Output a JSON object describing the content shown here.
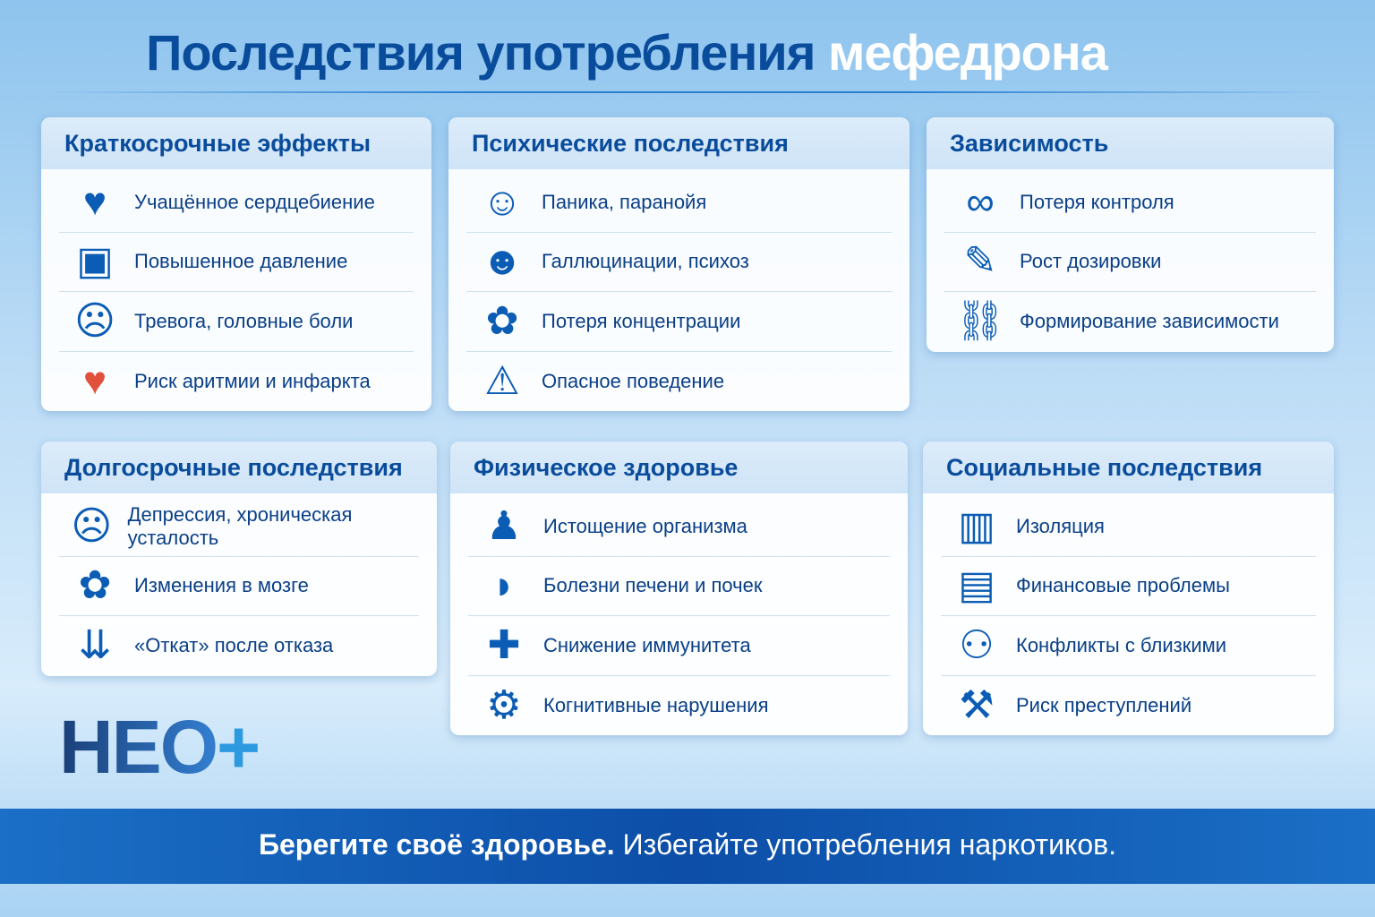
{
  "title": {
    "main": "Последствия употребления",
    "highlight": "мефедрона"
  },
  "cards": [
    {
      "title": "Краткосрочные эффекты",
      "items": [
        {
          "icon": "heartbeat-icon",
          "label": "Учащённое сердцебиение"
        },
        {
          "icon": "blood-pressure-monitor-icon",
          "label": "Повышенное давление"
        },
        {
          "icon": "anxious-person-icon",
          "label": "Тревога, головные боли"
        },
        {
          "icon": "heart-pulse-icon",
          "label": "Риск аритмии и инфаркта"
        }
      ]
    },
    {
      "title": "Психические последствия",
      "items": [
        {
          "icon": "panic-face-icon",
          "label": "Паника, паранойя"
        },
        {
          "icon": "head-silhouette-icon",
          "label": "Галлюцинации, психоз"
        },
        {
          "icon": "brain-icon",
          "label": "Потеря концентрации"
        },
        {
          "icon": "warning-icon",
          "label": "Опасное поведение"
        }
      ]
    },
    {
      "title": "Зависимость",
      "items": [
        {
          "icon": "handcuffs-icon",
          "label": "Потеря контроля"
        },
        {
          "icon": "syringe-icon",
          "label": "Рост дозировки"
        },
        {
          "icon": "chain-link-icon",
          "label": "Формирование зависимости"
        }
      ]
    },
    {
      "title": "Долгосрочные последствия",
      "items": [
        {
          "icon": "sad-face-icon",
          "label": "Депрессия, хроническая усталость"
        },
        {
          "icon": "brain-tree-icon",
          "label": "Изменения в мозге"
        },
        {
          "icon": "down-arrows-icon",
          "label": "«Откат» после отказа"
        }
      ]
    },
    {
      "title": "Физическое здоровье",
      "items": [
        {
          "icon": "exhausted-body-icon",
          "label": "Истощение организма"
        },
        {
          "icon": "liver-icon",
          "label": "Болезни печени и почек"
        },
        {
          "icon": "shield-cross-icon",
          "label": "Снижение иммунитета"
        },
        {
          "icon": "head-gears-icon",
          "label": "Когнитивные нарушения"
        }
      ]
    },
    {
      "title": "Социальные последствия",
      "items": [
        {
          "icon": "prison-bars-icon",
          "label": "Изоляция"
        },
        {
          "icon": "wallet-icon",
          "label": "Финансовые проблемы"
        },
        {
          "icon": "conflict-people-icon",
          "label": "Конфликты с близкими"
        },
        {
          "icon": "gavel-icon",
          "label": "Риск преступлений"
        }
      ]
    }
  ],
  "logo": {
    "text": "НЕО",
    "plus": "+"
  },
  "footer": {
    "bold": "Берегите своё здоровье.",
    "rest": " Избегайте употребления наркотиков."
  },
  "colors": {
    "primary": "#0a4c9c",
    "footer": "#0c4ea8",
    "heart_red": "#e0503a"
  }
}
